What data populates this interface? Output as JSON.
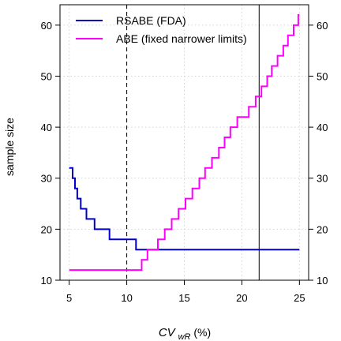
{
  "chart_data": {
    "type": "line",
    "step": true,
    "xlabel_main": "CV",
    "xlabel_sub": "wR",
    "xlabel_unit": " (%)",
    "ylabel": "sample size",
    "xlim": [
      4.2,
      25.8
    ],
    "ylim": [
      10,
      64
    ],
    "xticks": [
      5,
      10,
      15,
      20,
      25
    ],
    "yticks": [
      10,
      20,
      30,
      40,
      50,
      60
    ],
    "right_axis": true,
    "grid": true,
    "legend_position": "top-left",
    "series": [
      {
        "name": "RSABE (FDA)",
        "color": "#0000cc",
        "x": [
          5.0,
          5.3,
          5.5,
          5.7,
          6.0,
          6.5,
          7.2,
          8.5,
          10.8,
          11.5,
          25.0
        ],
        "y": [
          32,
          30,
          28,
          26,
          24,
          22,
          20,
          18,
          16,
          16,
          16
        ]
      },
      {
        "name": "ABE (fixed narrower limits)",
        "color": "#ff00ff",
        "x": [
          5.0,
          10.9,
          11.3,
          11.8,
          12.7,
          13.3,
          13.9,
          14.5,
          15.1,
          15.7,
          16.3,
          16.8,
          17.4,
          18.0,
          18.5,
          19.0,
          19.6,
          20.1,
          20.6,
          21.2,
          21.7,
          22.2,
          22.6,
          23.1,
          23.6,
          24.0,
          24.5,
          24.9,
          25.0
        ],
        "y": [
          12,
          12,
          14,
          16,
          18,
          20,
          22,
          24,
          26,
          28,
          30,
          32,
          34,
          36,
          38,
          40,
          42,
          42,
          44,
          46,
          48,
          50,
          52,
          54,
          56,
          58,
          60,
          62,
          62
        ]
      }
    ],
    "reference_lines": [
      {
        "x": 10,
        "style": "dashed",
        "color": "#000000"
      },
      {
        "x": 21.5,
        "style": "solid",
        "color": "#000000"
      }
    ]
  }
}
